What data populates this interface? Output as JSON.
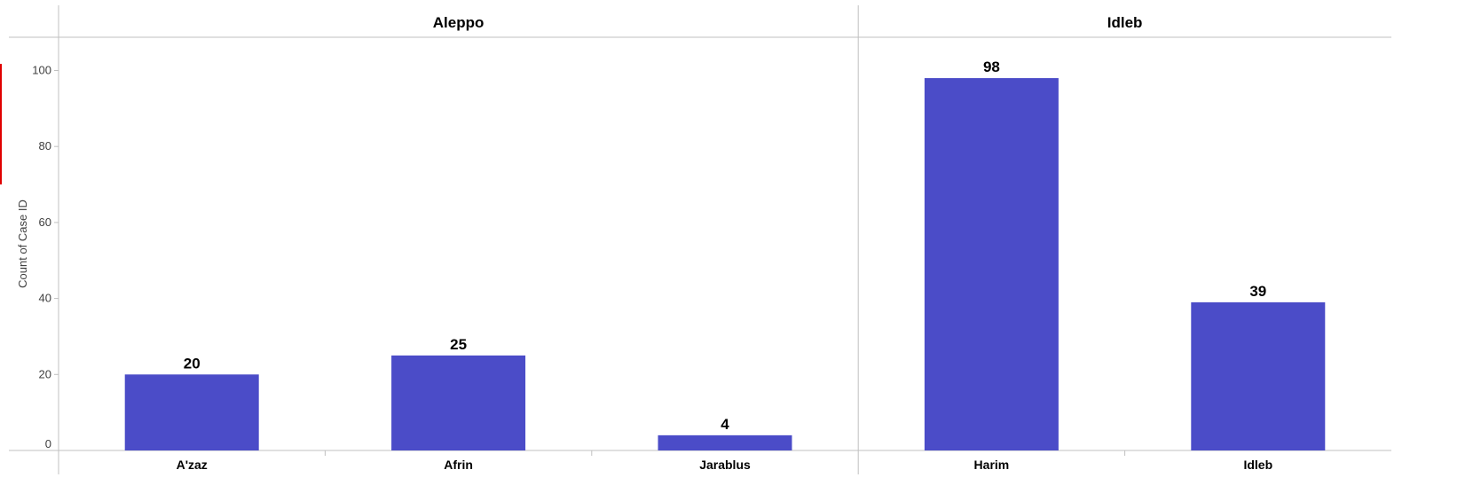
{
  "chart_data": {
    "type": "bar",
    "ylabel": "Count of Case ID",
    "ylim": [
      0,
      110
    ],
    "yticks": [
      0,
      20,
      40,
      60,
      80,
      100
    ],
    "grid": false,
    "bar_color": "#4b4cc8",
    "marker_color": "#e00000",
    "panels": [
      {
        "name": "Aleppo",
        "categories": [
          "A'zaz",
          "Afrin",
          "Jarablus"
        ],
        "values": [
          20,
          25,
          4
        ]
      },
      {
        "name": "Idleb",
        "categories": [
          "Harim",
          "Idleb"
        ],
        "values": [
          98,
          39
        ]
      }
    ]
  }
}
